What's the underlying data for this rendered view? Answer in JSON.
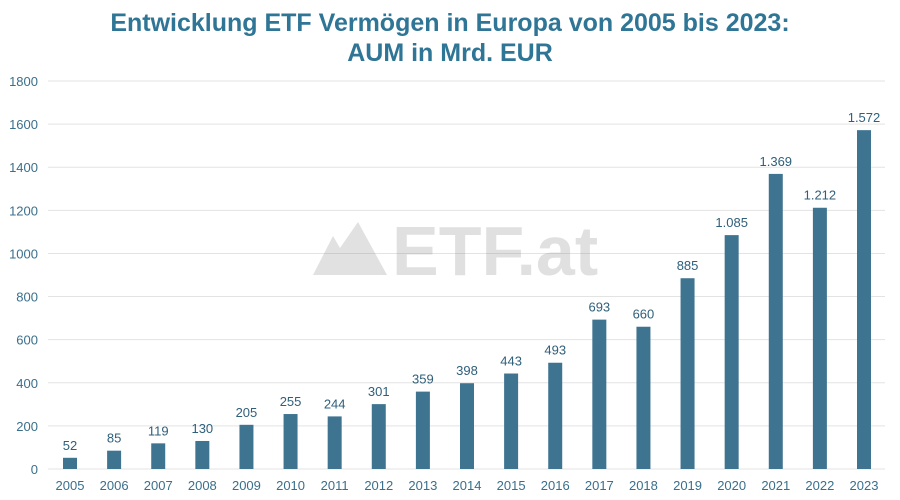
{
  "chart_data": {
    "type": "bar",
    "title_line1": "Entwicklung ETF Vermögen in Europa von 2005 bis 2023:",
    "title_line2": "AUM in Mrd. EUR",
    "xlabel": "",
    "ylabel": "",
    "categories": [
      "2005",
      "2006",
      "2007",
      "2008",
      "2009",
      "2010",
      "2011",
      "2012",
      "2013",
      "2014",
      "2015",
      "2016",
      "2017",
      "2018",
      "2019",
      "2020",
      "2021",
      "2022",
      "2023"
    ],
    "values": [
      52,
      85,
      119,
      130,
      205,
      255,
      244,
      301,
      359,
      398,
      443,
      493,
      693,
      660,
      885,
      1085,
      1369,
      1212,
      1572
    ],
    "data_labels": [
      "52",
      "85",
      "119",
      "130",
      "205",
      "255",
      "244",
      "301",
      "359",
      "398",
      "443",
      "493",
      "693",
      "660",
      "885",
      "1.085",
      "1.369",
      "1.212",
      "1.572"
    ],
    "ylim": [
      0,
      1800
    ],
    "yticks": [
      0,
      200,
      400,
      600,
      800,
      1000,
      1200,
      1400,
      1600,
      1800
    ],
    "grid": true,
    "bar_color": "#3f7491",
    "title_color": "#2f7596",
    "watermark": "ETF.at"
  }
}
